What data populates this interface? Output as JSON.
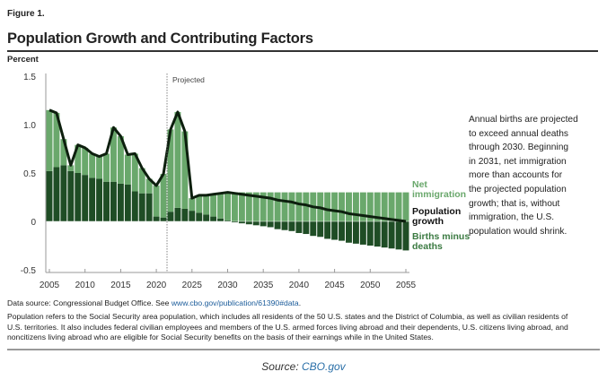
{
  "figure_label": "Figure 1.",
  "title": "Population Growth and Contributing Factors",
  "annotation_lines": [
    "Annual births are projected",
    "to exceed annual deaths",
    "through 2030. Beginning",
    "in 2031, net immigration",
    "more than accounts for",
    "the projected population",
    "growth; that is, without",
    "immigration, the U.S.",
    "population would shrink."
  ],
  "footer": {
    "data_source_prefix": "Data source: Congressional Budget Office. See ",
    "data_source_link": "www.cbo.gov/publication/61390#data",
    "data_source_suffix": ".",
    "note": "Population refers to the Social Security area population, which includes all residents of the 50 U.S. states and the District of Columbia, as well as civilian residents of U.S. territories. It also includes federal civilian employees and members of the U.S. armed forces living abroad and their dependents, U.S. citizens living abroad, and noncitizens living abroad who are eligible for Social Security benefits on the basis of their earnings while in the United States.",
    "credit_prefix": "Source: ",
    "credit_link": "CBO.gov"
  },
  "chart_data": {
    "type": "bar",
    "stacked": true,
    "title": "Population Growth and Contributing Factors",
    "ylabel": "Percent",
    "ylim": [
      -0.5,
      1.5
    ],
    "yticks": [
      "1.5",
      "1.0",
      "0.5",
      "0",
      "-0.5"
    ],
    "ytick_values": [
      1.5,
      1.0,
      0.5,
      0,
      -0.5
    ],
    "xlim": [
      2005,
      2055
    ],
    "xticks": [
      "2005",
      "2010",
      "2015",
      "2020",
      "2025",
      "2030",
      "2035",
      "2040",
      "2045",
      "2050",
      "2055"
    ],
    "projected_label": "Projected",
    "projected_start": 2021.5,
    "x": [
      2005,
      2006,
      2007,
      2008,
      2009,
      2010,
      2011,
      2012,
      2013,
      2014,
      2015,
      2016,
      2017,
      2018,
      2019,
      2020,
      2021,
      2022,
      2023,
      2024,
      2025,
      2026,
      2027,
      2028,
      2029,
      2030,
      2031,
      2032,
      2033,
      2034,
      2035,
      2036,
      2037,
      2038,
      2039,
      2040,
      2041,
      2042,
      2043,
      2044,
      2045,
      2046,
      2047,
      2048,
      2049,
      2050,
      2051,
      2052,
      2053,
      2054,
      2055
    ],
    "series": [
      {
        "name": "Births minus deaths",
        "kind": "bar",
        "color": "#1f4d25",
        "values": [
          0.52,
          0.56,
          0.58,
          0.52,
          0.5,
          0.48,
          0.45,
          0.44,
          0.41,
          0.41,
          0.39,
          0.38,
          0.31,
          0.29,
          0.29,
          0.05,
          0.04,
          0.1,
          0.14,
          0.13,
          0.11,
          0.09,
          0.07,
          0.05,
          0.03,
          0.01,
          -0.01,
          -0.02,
          -0.03,
          -0.04,
          -0.05,
          -0.06,
          -0.08,
          -0.09,
          -0.1,
          -0.12,
          -0.13,
          -0.15,
          -0.16,
          -0.18,
          -0.19,
          -0.2,
          -0.22,
          -0.23,
          -0.24,
          -0.25,
          -0.26,
          -0.27,
          -0.28,
          -0.29,
          -0.3
        ]
      },
      {
        "name": "Net immigration",
        "kind": "bar",
        "color": "#6aa86c",
        "values": [
          0.63,
          0.56,
          0.27,
          0.06,
          0.29,
          0.28,
          0.25,
          0.23,
          0.29,
          0.56,
          0.49,
          0.31,
          0.39,
          0.26,
          0.15,
          0.32,
          0.45,
          0.85,
          0.99,
          0.8,
          0.13,
          0.18,
          0.2,
          0.23,
          0.26,
          0.29,
          0.3,
          0.3,
          0.3,
          0.3,
          0.3,
          0.3,
          0.3,
          0.3,
          0.3,
          0.3,
          0.3,
          0.3,
          0.3,
          0.3,
          0.3,
          0.3,
          0.3,
          0.3,
          0.3,
          0.3,
          0.3,
          0.3,
          0.3,
          0.3,
          0.3
        ]
      },
      {
        "name": "Population growth",
        "kind": "line",
        "color": "#0d1f0e",
        "values": [
          1.15,
          1.12,
          0.85,
          0.58,
          0.79,
          0.76,
          0.7,
          0.67,
          0.7,
          0.97,
          0.88,
          0.69,
          0.7,
          0.55,
          0.44,
          0.37,
          0.49,
          0.95,
          1.13,
          0.93,
          0.24,
          0.27,
          0.27,
          0.28,
          0.29,
          0.3,
          0.29,
          0.28,
          0.27,
          0.26,
          0.25,
          0.24,
          0.22,
          0.21,
          0.2,
          0.18,
          0.17,
          0.15,
          0.14,
          0.12,
          0.11,
          0.1,
          0.08,
          0.07,
          0.06,
          0.05,
          0.04,
          0.03,
          0.02,
          0.01,
          0.0
        ]
      }
    ],
    "legend": [
      "Net immigration",
      "Population growth",
      "Births minus deaths"
    ],
    "legend_placement": "right",
    "grid": false
  }
}
